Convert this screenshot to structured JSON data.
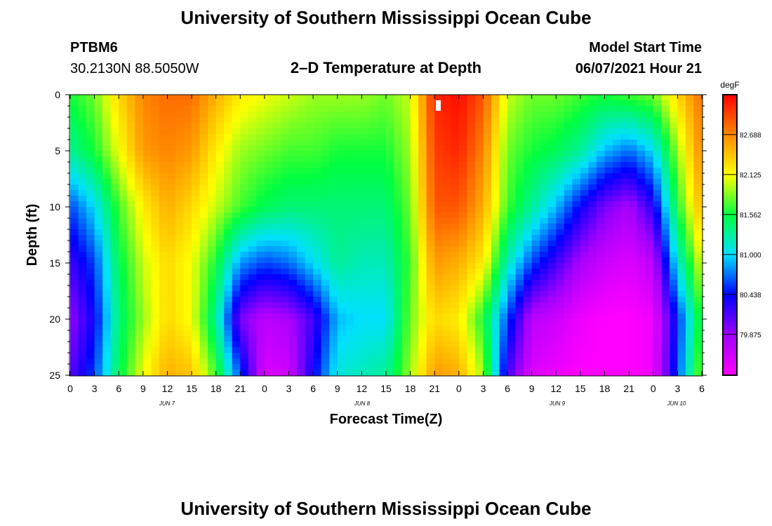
{
  "header": {
    "title_top": "University of Southern Mississippi Ocean Cube",
    "station_id": "PTBM6",
    "station_coords": "30.2130N  88.5050W",
    "plot_title": "2–D Temperature at Depth",
    "model_start_label": "Model Start Time",
    "model_start_value": "06/07/2021 Hour 21"
  },
  "footer": {
    "title_bottom": "University of Southern Mississippi Ocean Cube"
  },
  "chart_data": {
    "type": "heatmap",
    "title": "2–D Temperature at Depth",
    "xlabel": "Forecast Time(Z)",
    "ylabel": "Depth (ft)",
    "x_hours_range": [
      0,
      78
    ],
    "x_tick_labels": [
      "0",
      "3",
      "6",
      "9",
      "12",
      "15",
      "18",
      "21",
      "0",
      "3",
      "6",
      "9",
      "12",
      "15",
      "18",
      "21",
      "0",
      "3",
      "6",
      "9",
      "12",
      "15",
      "18",
      "21",
      "0",
      "3",
      "6"
    ],
    "date_labels": [
      "JUN 7",
      "JUN 8",
      "JUN 9",
      "JUN 10"
    ],
    "y_ticks": [
      0,
      5,
      10,
      15,
      20,
      25
    ],
    "ylim": [
      0,
      25
    ],
    "y_inverted": true,
    "colorbar": {
      "unit": "degF",
      "range": [
        79.3,
        83.25
      ],
      "labels": [
        "82.688",
        "82.125",
        "81.562",
        "81.000",
        "80.438",
        "79.875"
      ],
      "colors": [
        "#ff00ff",
        "#a000ff",
        "#0000ff",
        "#00e0ff",
        "#00ff40",
        "#ffff00",
        "#ff8800",
        "#ff0000"
      ]
    },
    "value_grid": {
      "hours": [
        0,
        3,
        6,
        9,
        12,
        15,
        18,
        21,
        24,
        27,
        30,
        33,
        36,
        39,
        42,
        45,
        48,
        51,
        54,
        57,
        60,
        63,
        66,
        69,
        72,
        75,
        78
      ],
      "depths": [
        0,
        5,
        10,
        15,
        20,
        25
      ],
      "temps": [
        [
          81.6,
          81.3,
          80.6,
          80.2,
          79.9,
          80.1
        ],
        [
          81.8,
          81.6,
          81.0,
          80.6,
          80.4,
          80.6
        ],
        [
          82.3,
          82.1,
          81.7,
          81.5,
          81.4,
          81.5
        ],
        [
          82.7,
          82.6,
          82.2,
          82.0,
          81.9,
          82.1
        ],
        [
          82.8,
          82.7,
          82.5,
          82.3,
          82.3,
          82.5
        ],
        [
          82.8,
          82.6,
          82.3,
          82.1,
          82.1,
          82.4
        ],
        [
          82.5,
          82.2,
          82.0,
          81.6,
          81.3,
          81.7
        ],
        [
          82.2,
          81.9,
          81.7,
          80.8,
          80.0,
          80.6
        ],
        [
          82.1,
          81.8,
          81.5,
          80.6,
          79.7,
          79.5
        ],
        [
          82.0,
          81.7,
          81.4,
          80.7,
          79.8,
          79.6
        ],
        [
          81.9,
          81.7,
          81.4,
          81.0,
          80.2,
          80.4
        ],
        [
          81.9,
          81.6,
          81.4,
          81.3,
          80.9,
          81.1
        ],
        [
          81.9,
          81.6,
          81.4,
          81.2,
          81.0,
          81.2
        ],
        [
          81.8,
          81.6,
          81.4,
          81.2,
          81.0,
          81.3
        ],
        [
          82.0,
          81.9,
          81.8,
          81.7,
          81.8,
          81.9
        ],
        [
          83.1,
          83.0,
          82.9,
          82.6,
          82.3,
          82.6
        ],
        [
          83.2,
          83.1,
          82.9,
          82.5,
          82.2,
          82.5
        ],
        [
          82.9,
          82.7,
          82.5,
          82.2,
          81.6,
          81.9
        ],
        [
          82.0,
          81.8,
          81.7,
          81.2,
          80.6,
          80.2
        ],
        [
          81.8,
          81.6,
          81.3,
          80.6,
          79.7,
          79.5
        ],
        [
          81.8,
          81.5,
          80.9,
          80.2,
          79.6,
          79.4
        ],
        [
          81.7,
          81.3,
          80.4,
          79.8,
          79.4,
          79.3
        ],
        [
          81.6,
          80.9,
          80.0,
          79.6,
          79.3,
          79.3
        ],
        [
          81.7,
          80.7,
          79.8,
          79.5,
          79.3,
          79.3
        ],
        [
          81.8,
          81.0,
          80.3,
          79.7,
          79.4,
          79.4
        ],
        [
          82.3,
          81.9,
          81.6,
          81.1,
          80.5,
          80.6
        ],
        [
          82.8,
          82.7,
          82.5,
          82.1,
          81.7,
          81.9
        ]
      ]
    }
  }
}
